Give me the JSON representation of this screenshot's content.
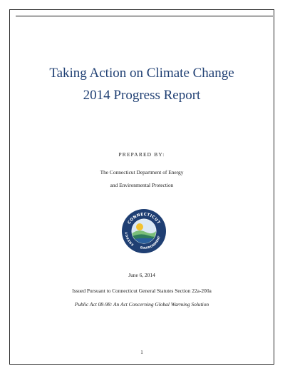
{
  "document": {
    "title_line_1": "Taking Action on Climate Change",
    "title_line_2": "2014 Progress Report",
    "prepared_label": "PREPARED BY:",
    "department_line_1": "The Connecticut Department of Energy",
    "department_line_2": "and Environmental Protection",
    "date": "June 6, 2014",
    "issued": "Issued Pursuant to Connecticut General Statutes Section 22a-200a",
    "public_act": "Public Act 08-98: An Act Concerning Global Warming Solution",
    "page_number": "1"
  },
  "seal": {
    "text_top": "CONNECTICUT",
    "text_left": "ENERGY",
    "text_right": "ENVIRONMENT",
    "colors": {
      "ring": "#1f3f73",
      "sky": "#dbe9f5",
      "sun": "#f2c230",
      "hills_light": "#7bbf7a",
      "hills_dark": "#2f7d5c",
      "water": "#2a5f9e"
    }
  }
}
